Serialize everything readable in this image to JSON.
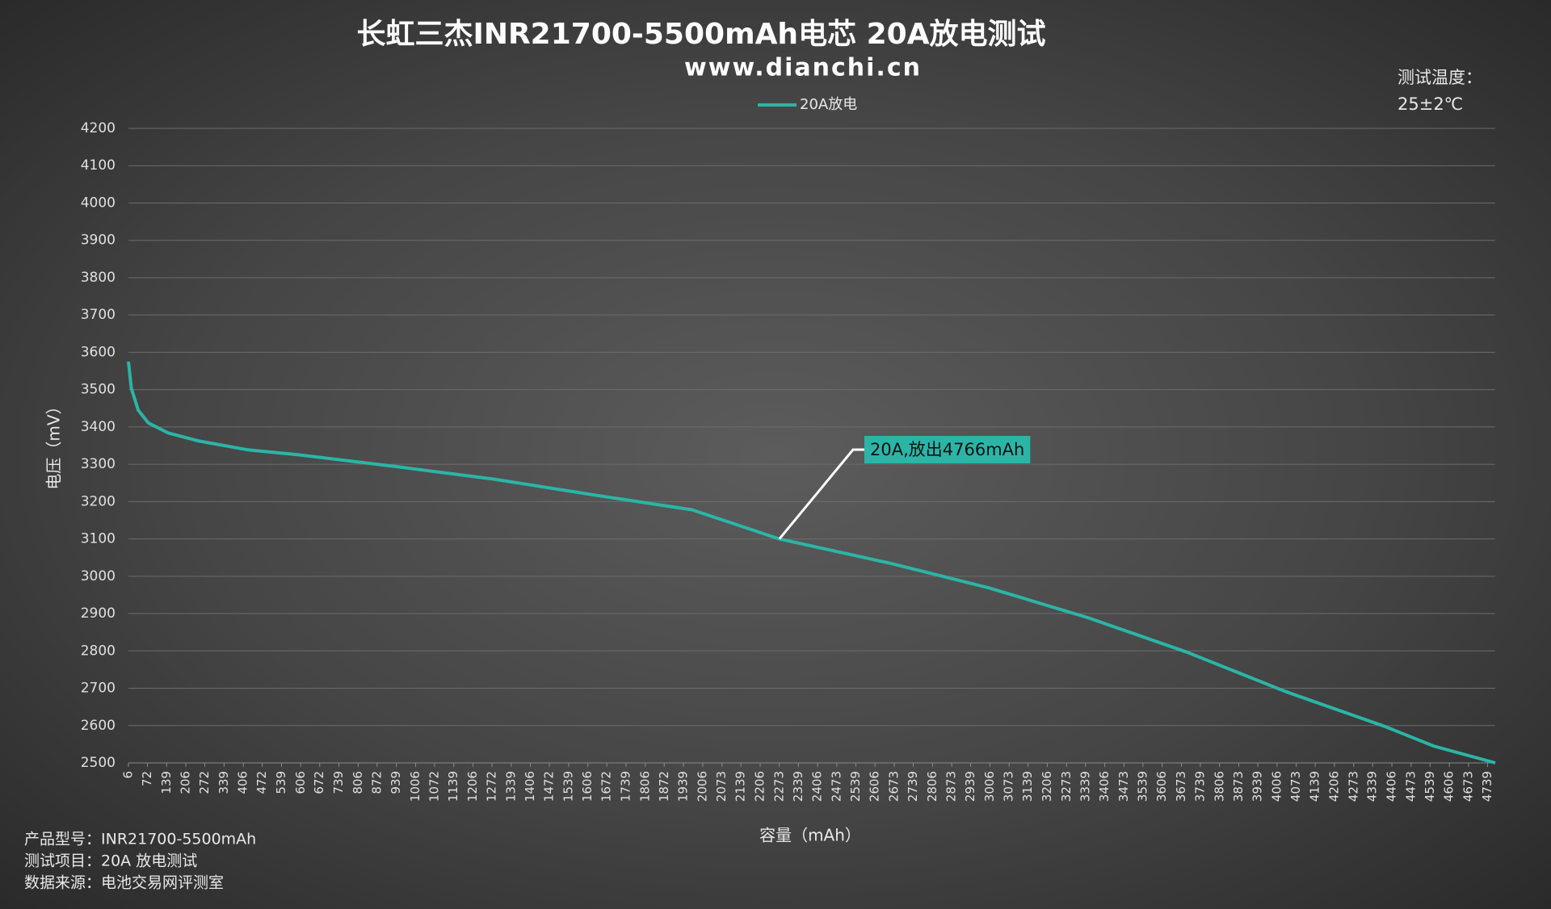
{
  "chart_data": {
    "type": "line",
    "title": "长虹三杰INR21700-5500mAh电芯 20A放电测试",
    "subtitle": "www.dianchi.cn",
    "note": [
      "测试温度：",
      "25±2℃"
    ],
    "x_label": "容量（mAh）",
    "y_label": "电压（mV）",
    "footer": [
      "产品型号：INR21700-5500mAh",
      "测试项目：20A 放电测试",
      "数据来源：电池交易网评测室"
    ],
    "legend": "top",
    "grid": true,
    "xlim": [
      6,
      4766
    ],
    "ylim": [
      2500,
      4200
    ],
    "xticks": [
      6,
      72,
      139,
      206,
      272,
      339,
      406,
      472,
      539,
      606,
      672,
      739,
      806,
      872,
      939,
      1006,
      1072,
      1139,
      1206,
      1272,
      1339,
      1406,
      1472,
      1539,
      1606,
      1672,
      1739,
      1806,
      1872,
      1939,
      2006,
      2073,
      2139,
      2206,
      2273,
      2339,
      2406,
      2473,
      2539,
      2606,
      2673,
      2739,
      2806,
      2873,
      2939,
      3006,
      3073,
      3139,
      3206,
      3273,
      3339,
      3406,
      3473,
      3539,
      3606,
      3673,
      3739,
      3806,
      3873,
      3939,
      4006,
      4073,
      4139,
      4206,
      4273,
      4339,
      4406,
      4473,
      4539,
      4606,
      4673,
      4739
    ],
    "yticks": [
      2500,
      2600,
      2700,
      2800,
      2900,
      3000,
      3100,
      3200,
      3300,
      3400,
      3500,
      3600,
      3700,
      3800,
      3900,
      4000,
      4100,
      4200
    ],
    "series": [
      {
        "name": "20A放电",
        "color": "#2bb5a6",
        "x": [
          6,
          16,
          40,
          75,
          144,
          247,
          419,
          592,
          936,
          1280,
          1625,
          1969,
          2273,
          2658,
          3002,
          3347,
          3691,
          4036,
          4380,
          4552,
          4766
        ],
        "values": [
          3575,
          3504,
          3445,
          3411,
          3384,
          3363,
          3339,
          3326,
          3294,
          3260,
          3218,
          3178,
          3100,
          3035,
          2969,
          2889,
          2797,
          2691,
          2598,
          2545,
          2500
        ]
      }
    ],
    "annotation": {
      "text": "20A,放出4766mAh",
      "x": 2273,
      "y": 3100
    }
  }
}
